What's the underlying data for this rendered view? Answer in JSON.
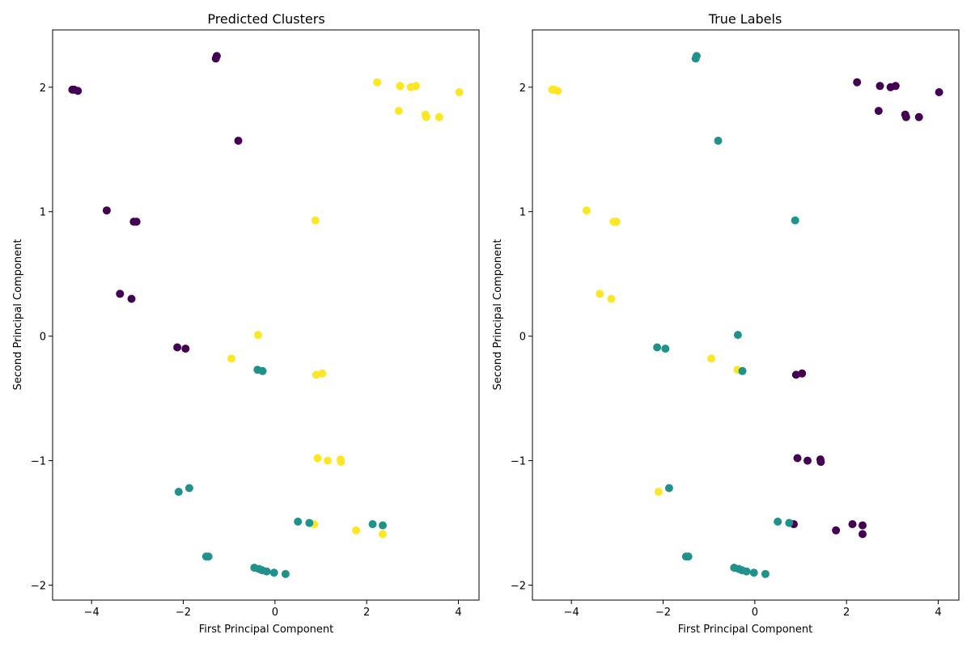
{
  "colors": {
    "purple": "#440154",
    "teal": "#21918c",
    "yellow": "#fde725"
  },
  "chart_data": [
    {
      "type": "scatter",
      "title": "Predicted Clusters",
      "xlabel": "First Principal Component",
      "ylabel": "Second Principal Component",
      "xlim": [
        -4.85,
        4.45
      ],
      "ylim": [
        -2.12,
        2.46
      ],
      "xticks": [
        -4,
        -2,
        0,
        2,
        4
      ],
      "xtick_labels": [
        "−4",
        "−2",
        "0",
        "2",
        "4"
      ],
      "yticks": [
        -2,
        -1,
        0,
        1,
        2
      ],
      "ytick_labels": [
        "−2",
        "−1",
        "0",
        "1",
        "2"
      ],
      "grid": false,
      "points": [
        {
          "x": -4.42,
          "y": 1.98,
          "c": "purple"
        },
        {
          "x": -4.38,
          "y": 1.98,
          "c": "purple"
        },
        {
          "x": -4.3,
          "y": 1.97,
          "c": "purple"
        },
        {
          "x": -1.27,
          "y": 2.25,
          "c": "purple"
        },
        {
          "x": -1.29,
          "y": 2.23,
          "c": "purple"
        },
        {
          "x": -0.8,
          "y": 1.57,
          "c": "purple"
        },
        {
          "x": -3.67,
          "y": 1.01,
          "c": "purple"
        },
        {
          "x": -3.08,
          "y": 0.92,
          "c": "purple"
        },
        {
          "x": -3.02,
          "y": 0.92,
          "c": "purple"
        },
        {
          "x": -3.38,
          "y": 0.34,
          "c": "purple"
        },
        {
          "x": -3.13,
          "y": 0.3,
          "c": "purple"
        },
        {
          "x": -2.13,
          "y": -0.09,
          "c": "purple"
        },
        {
          "x": -1.95,
          "y": -0.1,
          "c": "purple"
        },
        {
          "x": 2.23,
          "y": 2.04,
          "c": "yellow"
        },
        {
          "x": 2.73,
          "y": 2.01,
          "c": "yellow"
        },
        {
          "x": 2.96,
          "y": 2.0,
          "c": "yellow"
        },
        {
          "x": 3.07,
          "y": 2.01,
          "c": "yellow"
        },
        {
          "x": 4.02,
          "y": 1.96,
          "c": "yellow"
        },
        {
          "x": 2.7,
          "y": 1.81,
          "c": "yellow"
        },
        {
          "x": 3.28,
          "y": 1.78,
          "c": "yellow"
        },
        {
          "x": 3.3,
          "y": 1.76,
          "c": "yellow"
        },
        {
          "x": 3.58,
          "y": 1.76,
          "c": "yellow"
        },
        {
          "x": 0.88,
          "y": 0.93,
          "c": "yellow"
        },
        {
          "x": -0.37,
          "y": 0.01,
          "c": "yellow"
        },
        {
          "x": -0.95,
          "y": -0.18,
          "c": "yellow"
        },
        {
          "x": 0.9,
          "y": -0.31,
          "c": "yellow"
        },
        {
          "x": 1.03,
          "y": -0.3,
          "c": "yellow"
        },
        {
          "x": 0.93,
          "y": -0.98,
          "c": "yellow"
        },
        {
          "x": 1.15,
          "y": -1.0,
          "c": "yellow"
        },
        {
          "x": 1.43,
          "y": -0.99,
          "c": "yellow"
        },
        {
          "x": 1.44,
          "y": -1.01,
          "c": "yellow"
        },
        {
          "x": 0.85,
          "y": -1.51,
          "c": "yellow"
        },
        {
          "x": 1.77,
          "y": -1.56,
          "c": "yellow"
        },
        {
          "x": 2.35,
          "y": -1.59,
          "c": "yellow"
        },
        {
          "x": -0.38,
          "y": -0.27,
          "c": "teal"
        },
        {
          "x": -0.27,
          "y": -0.28,
          "c": "teal"
        },
        {
          "x": -2.1,
          "y": -1.25,
          "c": "teal"
        },
        {
          "x": -1.87,
          "y": -1.22,
          "c": "teal"
        },
        {
          "x": 0.5,
          "y": -1.49,
          "c": "teal"
        },
        {
          "x": 0.75,
          "y": -1.5,
          "c": "teal"
        },
        {
          "x": 2.13,
          "y": -1.51,
          "c": "teal"
        },
        {
          "x": 2.35,
          "y": -1.52,
          "c": "teal"
        },
        {
          "x": -1.5,
          "y": -1.77,
          "c": "teal"
        },
        {
          "x": -1.45,
          "y": -1.77,
          "c": "teal"
        },
        {
          "x": -0.45,
          "y": -1.86,
          "c": "teal"
        },
        {
          "x": -0.35,
          "y": -1.87,
          "c": "teal"
        },
        {
          "x": -0.28,
          "y": -1.88,
          "c": "teal"
        },
        {
          "x": -0.18,
          "y": -1.89,
          "c": "teal"
        },
        {
          "x": -0.02,
          "y": -1.9,
          "c": "teal"
        },
        {
          "x": 0.23,
          "y": -1.91,
          "c": "teal"
        }
      ]
    },
    {
      "type": "scatter",
      "title": "True Labels",
      "xlabel": "First Principal Component",
      "ylabel": "Second Principal Component",
      "xlim": [
        -4.85,
        4.45
      ],
      "ylim": [
        -2.12,
        2.46
      ],
      "xticks": [
        -4,
        -2,
        0,
        2,
        4
      ],
      "xtick_labels": [
        "−4",
        "−2",
        "0",
        "2",
        "4"
      ],
      "yticks": [
        -2,
        -1,
        0,
        1,
        2
      ],
      "ytick_labels": [
        "−2",
        "−1",
        "0",
        "1",
        "2"
      ],
      "grid": false,
      "points": [
        {
          "x": -4.42,
          "y": 1.98,
          "c": "yellow"
        },
        {
          "x": -4.38,
          "y": 1.98,
          "c": "yellow"
        },
        {
          "x": -4.3,
          "y": 1.97,
          "c": "yellow"
        },
        {
          "x": -1.27,
          "y": 2.25,
          "c": "teal"
        },
        {
          "x": -1.29,
          "y": 2.23,
          "c": "teal"
        },
        {
          "x": -0.8,
          "y": 1.57,
          "c": "teal"
        },
        {
          "x": -3.67,
          "y": 1.01,
          "c": "yellow"
        },
        {
          "x": -3.08,
          "y": 0.92,
          "c": "yellow"
        },
        {
          "x": -3.02,
          "y": 0.92,
          "c": "yellow"
        },
        {
          "x": -3.38,
          "y": 0.34,
          "c": "yellow"
        },
        {
          "x": -3.13,
          "y": 0.3,
          "c": "yellow"
        },
        {
          "x": -2.13,
          "y": -0.09,
          "c": "teal"
        },
        {
          "x": -1.95,
          "y": -0.1,
          "c": "teal"
        },
        {
          "x": 2.23,
          "y": 2.04,
          "c": "purple"
        },
        {
          "x": 2.73,
          "y": 2.01,
          "c": "purple"
        },
        {
          "x": 2.96,
          "y": 2.0,
          "c": "purple"
        },
        {
          "x": 3.07,
          "y": 2.01,
          "c": "purple"
        },
        {
          "x": 4.02,
          "y": 1.96,
          "c": "purple"
        },
        {
          "x": 2.7,
          "y": 1.81,
          "c": "purple"
        },
        {
          "x": 3.28,
          "y": 1.78,
          "c": "purple"
        },
        {
          "x": 3.3,
          "y": 1.76,
          "c": "purple"
        },
        {
          "x": 3.58,
          "y": 1.76,
          "c": "purple"
        },
        {
          "x": 0.88,
          "y": 0.93,
          "c": "teal"
        },
        {
          "x": -0.37,
          "y": 0.01,
          "c": "teal"
        },
        {
          "x": -0.95,
          "y": -0.18,
          "c": "yellow"
        },
        {
          "x": 0.9,
          "y": -0.31,
          "c": "purple"
        },
        {
          "x": 1.03,
          "y": -0.3,
          "c": "purple"
        },
        {
          "x": 0.93,
          "y": -0.98,
          "c": "purple"
        },
        {
          "x": 1.15,
          "y": -1.0,
          "c": "purple"
        },
        {
          "x": 1.43,
          "y": -0.99,
          "c": "purple"
        },
        {
          "x": 1.44,
          "y": -1.01,
          "c": "purple"
        },
        {
          "x": 0.85,
          "y": -1.51,
          "c": "purple"
        },
        {
          "x": 1.77,
          "y": -1.56,
          "c": "purple"
        },
        {
          "x": 2.35,
          "y": -1.59,
          "c": "purple"
        },
        {
          "x": -0.38,
          "y": -0.27,
          "c": "yellow"
        },
        {
          "x": -0.27,
          "y": -0.28,
          "c": "teal"
        },
        {
          "x": -2.1,
          "y": -1.25,
          "c": "yellow"
        },
        {
          "x": -1.87,
          "y": -1.22,
          "c": "teal"
        },
        {
          "x": 0.5,
          "y": -1.49,
          "c": "teal"
        },
        {
          "x": 0.75,
          "y": -1.5,
          "c": "teal"
        },
        {
          "x": 2.13,
          "y": -1.51,
          "c": "purple"
        },
        {
          "x": 2.35,
          "y": -1.52,
          "c": "purple"
        },
        {
          "x": -1.5,
          "y": -1.77,
          "c": "teal"
        },
        {
          "x": -1.45,
          "y": -1.77,
          "c": "teal"
        },
        {
          "x": -0.45,
          "y": -1.86,
          "c": "teal"
        },
        {
          "x": -0.35,
          "y": -1.87,
          "c": "teal"
        },
        {
          "x": -0.28,
          "y": -1.88,
          "c": "teal"
        },
        {
          "x": -0.18,
          "y": -1.89,
          "c": "teal"
        },
        {
          "x": -0.02,
          "y": -1.9,
          "c": "teal"
        },
        {
          "x": 0.23,
          "y": -1.91,
          "c": "teal"
        }
      ]
    }
  ]
}
